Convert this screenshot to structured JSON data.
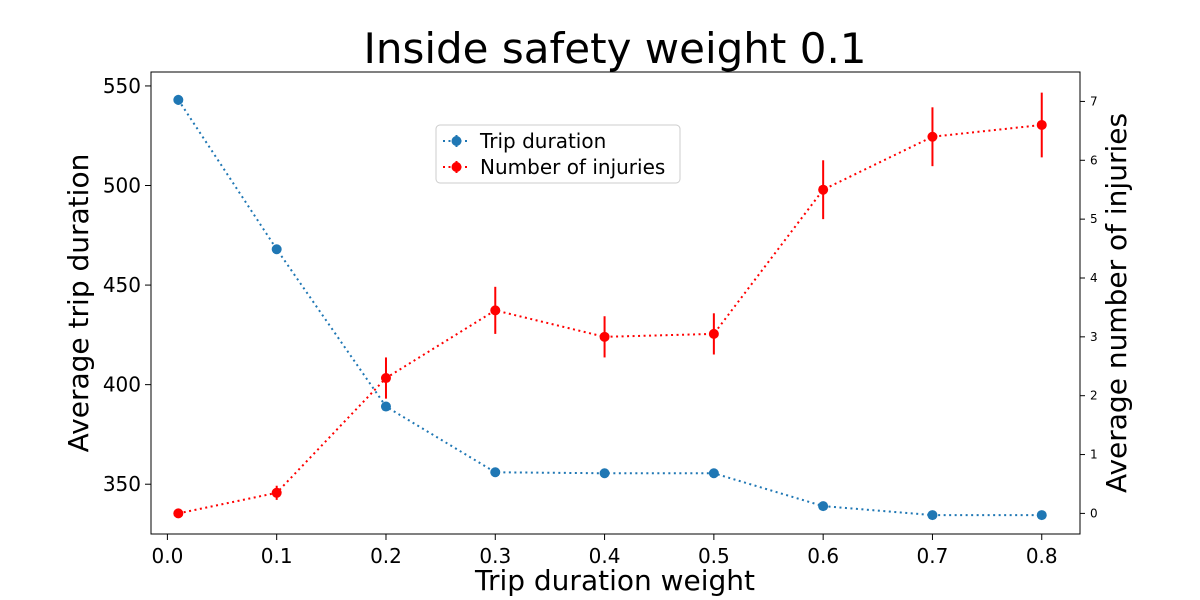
{
  "chart_data": {
    "type": "line",
    "title": "Inside safety weight 0.1",
    "xlabel": "Trip duration weight",
    "ylabel_left": "Average trip duration",
    "ylabel_right": "Average number of injuries",
    "x": [
      0.01,
      0.1,
      0.2,
      0.3,
      0.4,
      0.5,
      0.6,
      0.7,
      0.8
    ],
    "xlim": [
      -0.015,
      0.835
    ],
    "ylim_left": [
      325,
      557
    ],
    "ylim_right": [
      -0.35,
      7.5
    ],
    "x_ticks": [
      "0.0",
      "0.1",
      "0.2",
      "0.3",
      "0.4",
      "0.5",
      "0.6",
      "0.7",
      "0.8"
    ],
    "y_ticks_left": [
      "350",
      "400",
      "450",
      "500",
      "550"
    ],
    "y_ticks_right": [
      "0",
      "1",
      "2",
      "3",
      "4",
      "5",
      "6",
      "7"
    ],
    "legend_placement": "upper-center",
    "grid": false,
    "series": [
      {
        "name": "Trip duration",
        "axis": "left",
        "color": "#1f77b4",
        "style": "dotted",
        "values": [
          543,
          468,
          389,
          356,
          355.5,
          355.5,
          339,
          334.5,
          334.5
        ],
        "errors": [
          2.5,
          1.5,
          1.5,
          1.0,
          1.0,
          1.0,
          1.0,
          1.0,
          1.0
        ]
      },
      {
        "name": "Number of injuries",
        "axis": "right",
        "color": "#ff0000",
        "style": "dotted",
        "values": [
          0.0,
          0.35,
          2.3,
          3.45,
          3.0,
          3.05,
          5.5,
          6.4,
          6.6
        ],
        "errors": [
          0.0,
          0.12,
          0.35,
          0.4,
          0.35,
          0.35,
          0.5,
          0.5,
          0.55
        ]
      }
    ]
  }
}
